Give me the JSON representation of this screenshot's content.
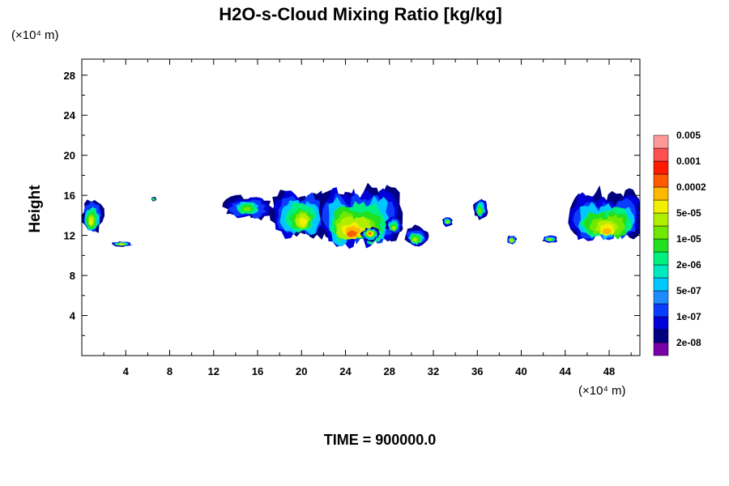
{
  "chart_data": {
    "type": "heatmap",
    "title": "H2O-s-Cloud Mixing Ratio [kg/kg]",
    "ylabel": "Height",
    "x_unit": "(×10⁴ m)",
    "y_unit": "(×10⁴ m)",
    "caption": "TIME = 900000.0",
    "xlim": [
      0,
      50.8
    ],
    "ylim": [
      0,
      29.6
    ],
    "x_ticks": [
      4,
      8,
      12,
      16,
      20,
      24,
      28,
      32,
      36,
      40,
      44,
      48
    ],
    "x_tick_labels": [
      "4",
      "8",
      "12",
      "16",
      "20",
      "24",
      "28",
      "32",
      "36",
      "40",
      "44",
      "48"
    ],
    "y_ticks": [
      4,
      8,
      12,
      16,
      20,
      24,
      28
    ],
    "y_tick_labels": [
      "4",
      "8",
      "12",
      "16",
      "20",
      "24",
      "28"
    ],
    "colorbar": {
      "colors": [
        "#7a00a8",
        "#000080",
        "#0000d8",
        "#0a3cff",
        "#1e8cff",
        "#00c8ff",
        "#00e8c0",
        "#00f080",
        "#20e020",
        "#70e800",
        "#b0ee00",
        "#f2ef00",
        "#ffb800",
        "#ff5a00",
        "#ff1a00",
        "#ff5050",
        "#ff9898"
      ],
      "labels": [
        "2e-08",
        "1e-07",
        "5e-07",
        "2e-06",
        "1e-05",
        "5e-05",
        "0.0002",
        "0.001",
        "0.005"
      ]
    },
    "cloud_regions": [
      {
        "x": [
          0.0,
          2.0
        ],
        "y": [
          12.2,
          15.8
        ],
        "core": [
          0.8,
          13.2
        ],
        "peak": 4
      },
      {
        "x": [
          2.6,
          4.6
        ],
        "y": [
          10.9,
          11.4
        ],
        "core": [
          3.6,
          11.1
        ],
        "peak": 4
      },
      {
        "x": [
          6.3,
          6.8
        ],
        "y": [
          15.4,
          15.9
        ],
        "core": [
          6.5,
          15.6
        ],
        "peak": 1
      },
      {
        "x": [
          13.3,
          17.0
        ],
        "y": [
          13.6,
          16.0
        ],
        "core": [
          15.0,
          14.6
        ],
        "peak": 2
      },
      {
        "x": [
          17.5,
          22.0
        ],
        "y": [
          11.6,
          16.6
        ],
        "core": [
          20.2,
          13.2
        ],
        "peak": 4
      },
      {
        "x": [
          22.0,
          28.8
        ],
        "y": [
          11.2,
          17.0
        ],
        "core": [
          24.4,
          11.8
        ],
        "peak": 6
      },
      {
        "x": [
          25.4,
          27.2
        ],
        "y": [
          11.4,
          12.8
        ],
        "core": [
          26.2,
          12.2
        ],
        "peak": 6
      },
      {
        "x": [
          27.6,
          29.2
        ],
        "y": [
          12.2,
          14.0
        ],
        "core": [
          28.4,
          12.6
        ],
        "peak": 3
      },
      {
        "x": [
          29.4,
          31.6
        ],
        "y": [
          10.9,
          12.9
        ],
        "core": [
          30.3,
          11.5
        ],
        "peak": 3
      },
      {
        "x": [
          32.8,
          33.8
        ],
        "y": [
          12.9,
          13.9
        ],
        "core": [
          33.3,
          13.3
        ],
        "peak": 3
      },
      {
        "x": [
          35.6,
          37.0
        ],
        "y": [
          13.4,
          16.0
        ],
        "core": [
          36.2,
          14.4
        ],
        "peak": 2
      },
      {
        "x": [
          38.7,
          39.6
        ],
        "y": [
          11.1,
          12.0
        ],
        "core": [
          39.1,
          11.5
        ],
        "peak": 5
      },
      {
        "x": [
          41.9,
          43.4
        ],
        "y": [
          11.2,
          12.0
        ],
        "core": [
          42.6,
          11.6
        ],
        "peak": 3
      },
      {
        "x": [
          44.6,
          50.8
        ],
        "y": [
          11.6,
          16.4
        ],
        "core": [
          47.8,
          12.2
        ],
        "peak": 5
      }
    ]
  }
}
